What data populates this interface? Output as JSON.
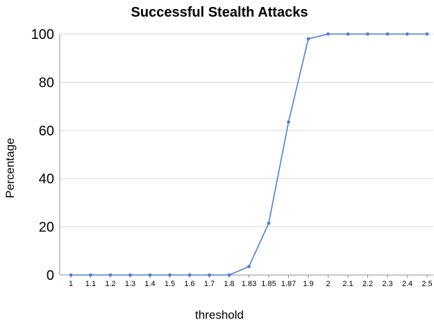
{
  "chart_data": {
    "type": "line",
    "title": "Successful Stealth Attacks",
    "xlabel": "threshold",
    "ylabel": "Percentage",
    "categories": [
      "1",
      "1.1",
      "1.2",
      "1.3",
      "1.4",
      "1.5",
      "1.6",
      "1.7",
      "1.8",
      "1.83",
      "1.85",
      "1.87",
      "1.9",
      "2",
      "2.1",
      "2.2",
      "2.3",
      "2.4",
      "2.5"
    ],
    "series": [
      {
        "values": [
          0,
          0,
          0,
          0,
          0,
          0,
          0,
          0,
          0,
          3.5,
          21.5,
          63.5,
          98,
          100,
          100,
          100,
          100,
          100,
          100
        ]
      }
    ],
    "ylim": [
      0,
      100
    ],
    "yticks": [
      0,
      20,
      40,
      60,
      80,
      100
    ],
    "grid": true,
    "legend": "none",
    "line_color": "#4a7fd6"
  }
}
